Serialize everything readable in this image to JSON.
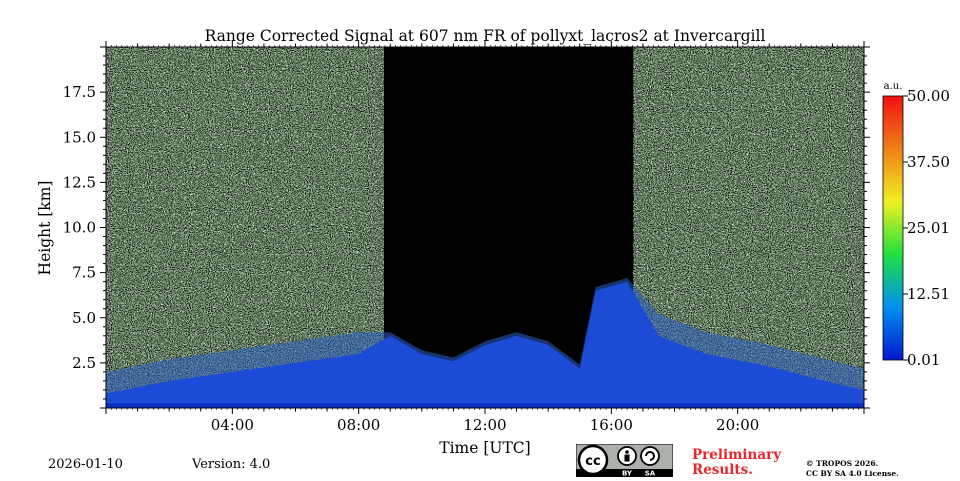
{
  "chart_data": {
    "type": "heatmap",
    "title": "Range Corrected Signal at 607 nm FR of pollyxt_lacros2 at Invercargill",
    "xlabel": "Time [UTC]",
    "ylabel": "Height [km]",
    "x_unit": "hours UTC",
    "xlim": [
      0,
      24
    ],
    "ylim": [
      0,
      20
    ],
    "x_ticks": [
      {
        "value": 4,
        "label": "04:00"
      },
      {
        "value": 8,
        "label": "08:00"
      },
      {
        "value": 12,
        "label": "12:00"
      },
      {
        "value": 16,
        "label": "16:00"
      },
      {
        "value": 20,
        "label": "20:00"
      }
    ],
    "y_ticks": [
      {
        "value": 2.5,
        "label": "2.5"
      },
      {
        "value": 5.0,
        "label": "5.0"
      },
      {
        "value": 7.5,
        "label": "7.5"
      },
      {
        "value": 10.0,
        "label": "10.0"
      },
      {
        "value": 12.5,
        "label": "12.5"
      },
      {
        "value": 15.0,
        "label": "15.0"
      },
      {
        "value": 17.5,
        "label": "17.5"
      }
    ],
    "colorbar": {
      "unit": "a.u.",
      "min": 0.01,
      "max": 50.0,
      "ticks": [
        {
          "value": 0.01,
          "label": "0.01"
        },
        {
          "value": 12.51,
          "label": "12.51"
        },
        {
          "value": 25.01,
          "label": "25.01"
        },
        {
          "value": 37.5,
          "label": "37.50"
        },
        {
          "value": 50.0,
          "label": "50.00"
        }
      ],
      "colors": [
        "#0018d0",
        "#0090f0",
        "#20e040",
        "#f0f020",
        "#f08018",
        "#f01010"
      ]
    },
    "features": {
      "daytime_low_signal_window_hours": [
        8.8,
        16.7
      ],
      "boundary_layer_top_km_by_hour": [
        [
          0,
          0.8
        ],
        [
          2,
          1.5
        ],
        [
          4,
          2.0
        ],
        [
          6,
          2.5
        ],
        [
          8,
          3.0
        ],
        [
          9,
          4.0
        ],
        [
          10,
          3.0
        ],
        [
          11,
          2.6
        ],
        [
          12,
          3.5
        ],
        [
          13,
          4.0
        ],
        [
          14,
          3.5
        ],
        [
          15,
          2.2
        ],
        [
          15.5,
          6.5
        ],
        [
          16.5,
          7.0
        ],
        [
          17.5,
          4.0
        ],
        [
          19,
          3.0
        ],
        [
          21,
          2.3
        ],
        [
          23,
          1.4
        ],
        [
          24,
          1.0
        ]
      ]
    }
  },
  "footer": {
    "date": "2026-01-10",
    "version": "Version: 4.0",
    "license_badge": {
      "cc": "cc",
      "by": "BY",
      "sa": "SA"
    },
    "preliminary": "Preliminary\nResults.",
    "preliminary_line1": "Preliminary",
    "preliminary_line2": "Results.",
    "copyright_line1": "© TROPOS 2026.",
    "copyright_line2": "CC BY SA 4.0 License."
  }
}
